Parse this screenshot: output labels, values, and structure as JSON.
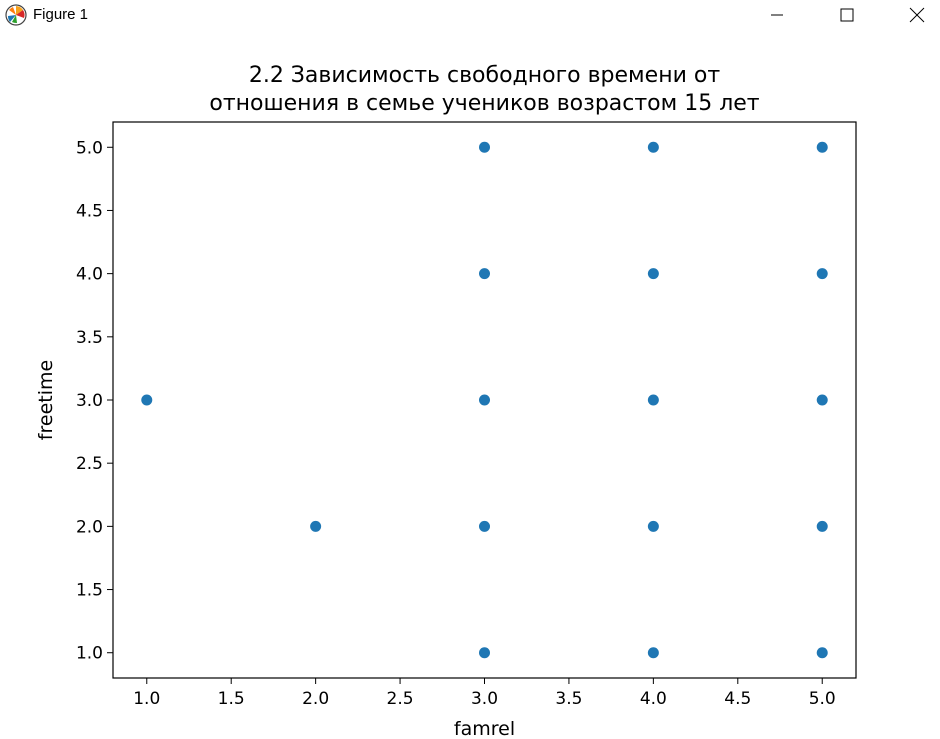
{
  "window": {
    "title": "Figure 1",
    "icon": "matplotlib-logo-icon",
    "controls": {
      "minimize_icon": "minimize-icon",
      "maximize_icon": "maximize-icon",
      "close_icon": "close-icon"
    }
  },
  "chart_data": {
    "type": "scatter",
    "title": "2.2 Зависимость свободного времени от\nотношения в семье учеников возрастом 15 лет",
    "xlabel": "famrel",
    "ylabel": "freetime",
    "xlim": [
      0.8,
      5.2
    ],
    "ylim": [
      0.8,
      5.2
    ],
    "xticks": [
      1.0,
      1.5,
      2.0,
      2.5,
      3.0,
      3.5,
      4.0,
      4.5,
      5.0
    ],
    "yticks": [
      1.0,
      1.5,
      2.0,
      2.5,
      3.0,
      3.5,
      4.0,
      4.5,
      5.0
    ],
    "xtick_labels": [
      "1.0",
      "1.5",
      "2.0",
      "2.5",
      "3.0",
      "3.5",
      "4.0",
      "4.5",
      "5.0"
    ],
    "ytick_labels": [
      "1.0",
      "1.5",
      "2.0",
      "2.5",
      "3.0",
      "3.5",
      "4.0",
      "4.5",
      "5.0"
    ],
    "grid": false,
    "marker_color": "#1f77b4",
    "points": [
      {
        "x": 1,
        "y": 3
      },
      {
        "x": 2,
        "y": 2
      },
      {
        "x": 3,
        "y": 1
      },
      {
        "x": 3,
        "y": 2
      },
      {
        "x": 3,
        "y": 3
      },
      {
        "x": 3,
        "y": 4
      },
      {
        "x": 3,
        "y": 5
      },
      {
        "x": 4,
        "y": 1
      },
      {
        "x": 4,
        "y": 2
      },
      {
        "x": 4,
        "y": 3
      },
      {
        "x": 4,
        "y": 4
      },
      {
        "x": 4,
        "y": 5
      },
      {
        "x": 5,
        "y": 1
      },
      {
        "x": 5,
        "y": 2
      },
      {
        "x": 5,
        "y": 3
      },
      {
        "x": 5,
        "y": 4
      },
      {
        "x": 5,
        "y": 5
      }
    ]
  }
}
